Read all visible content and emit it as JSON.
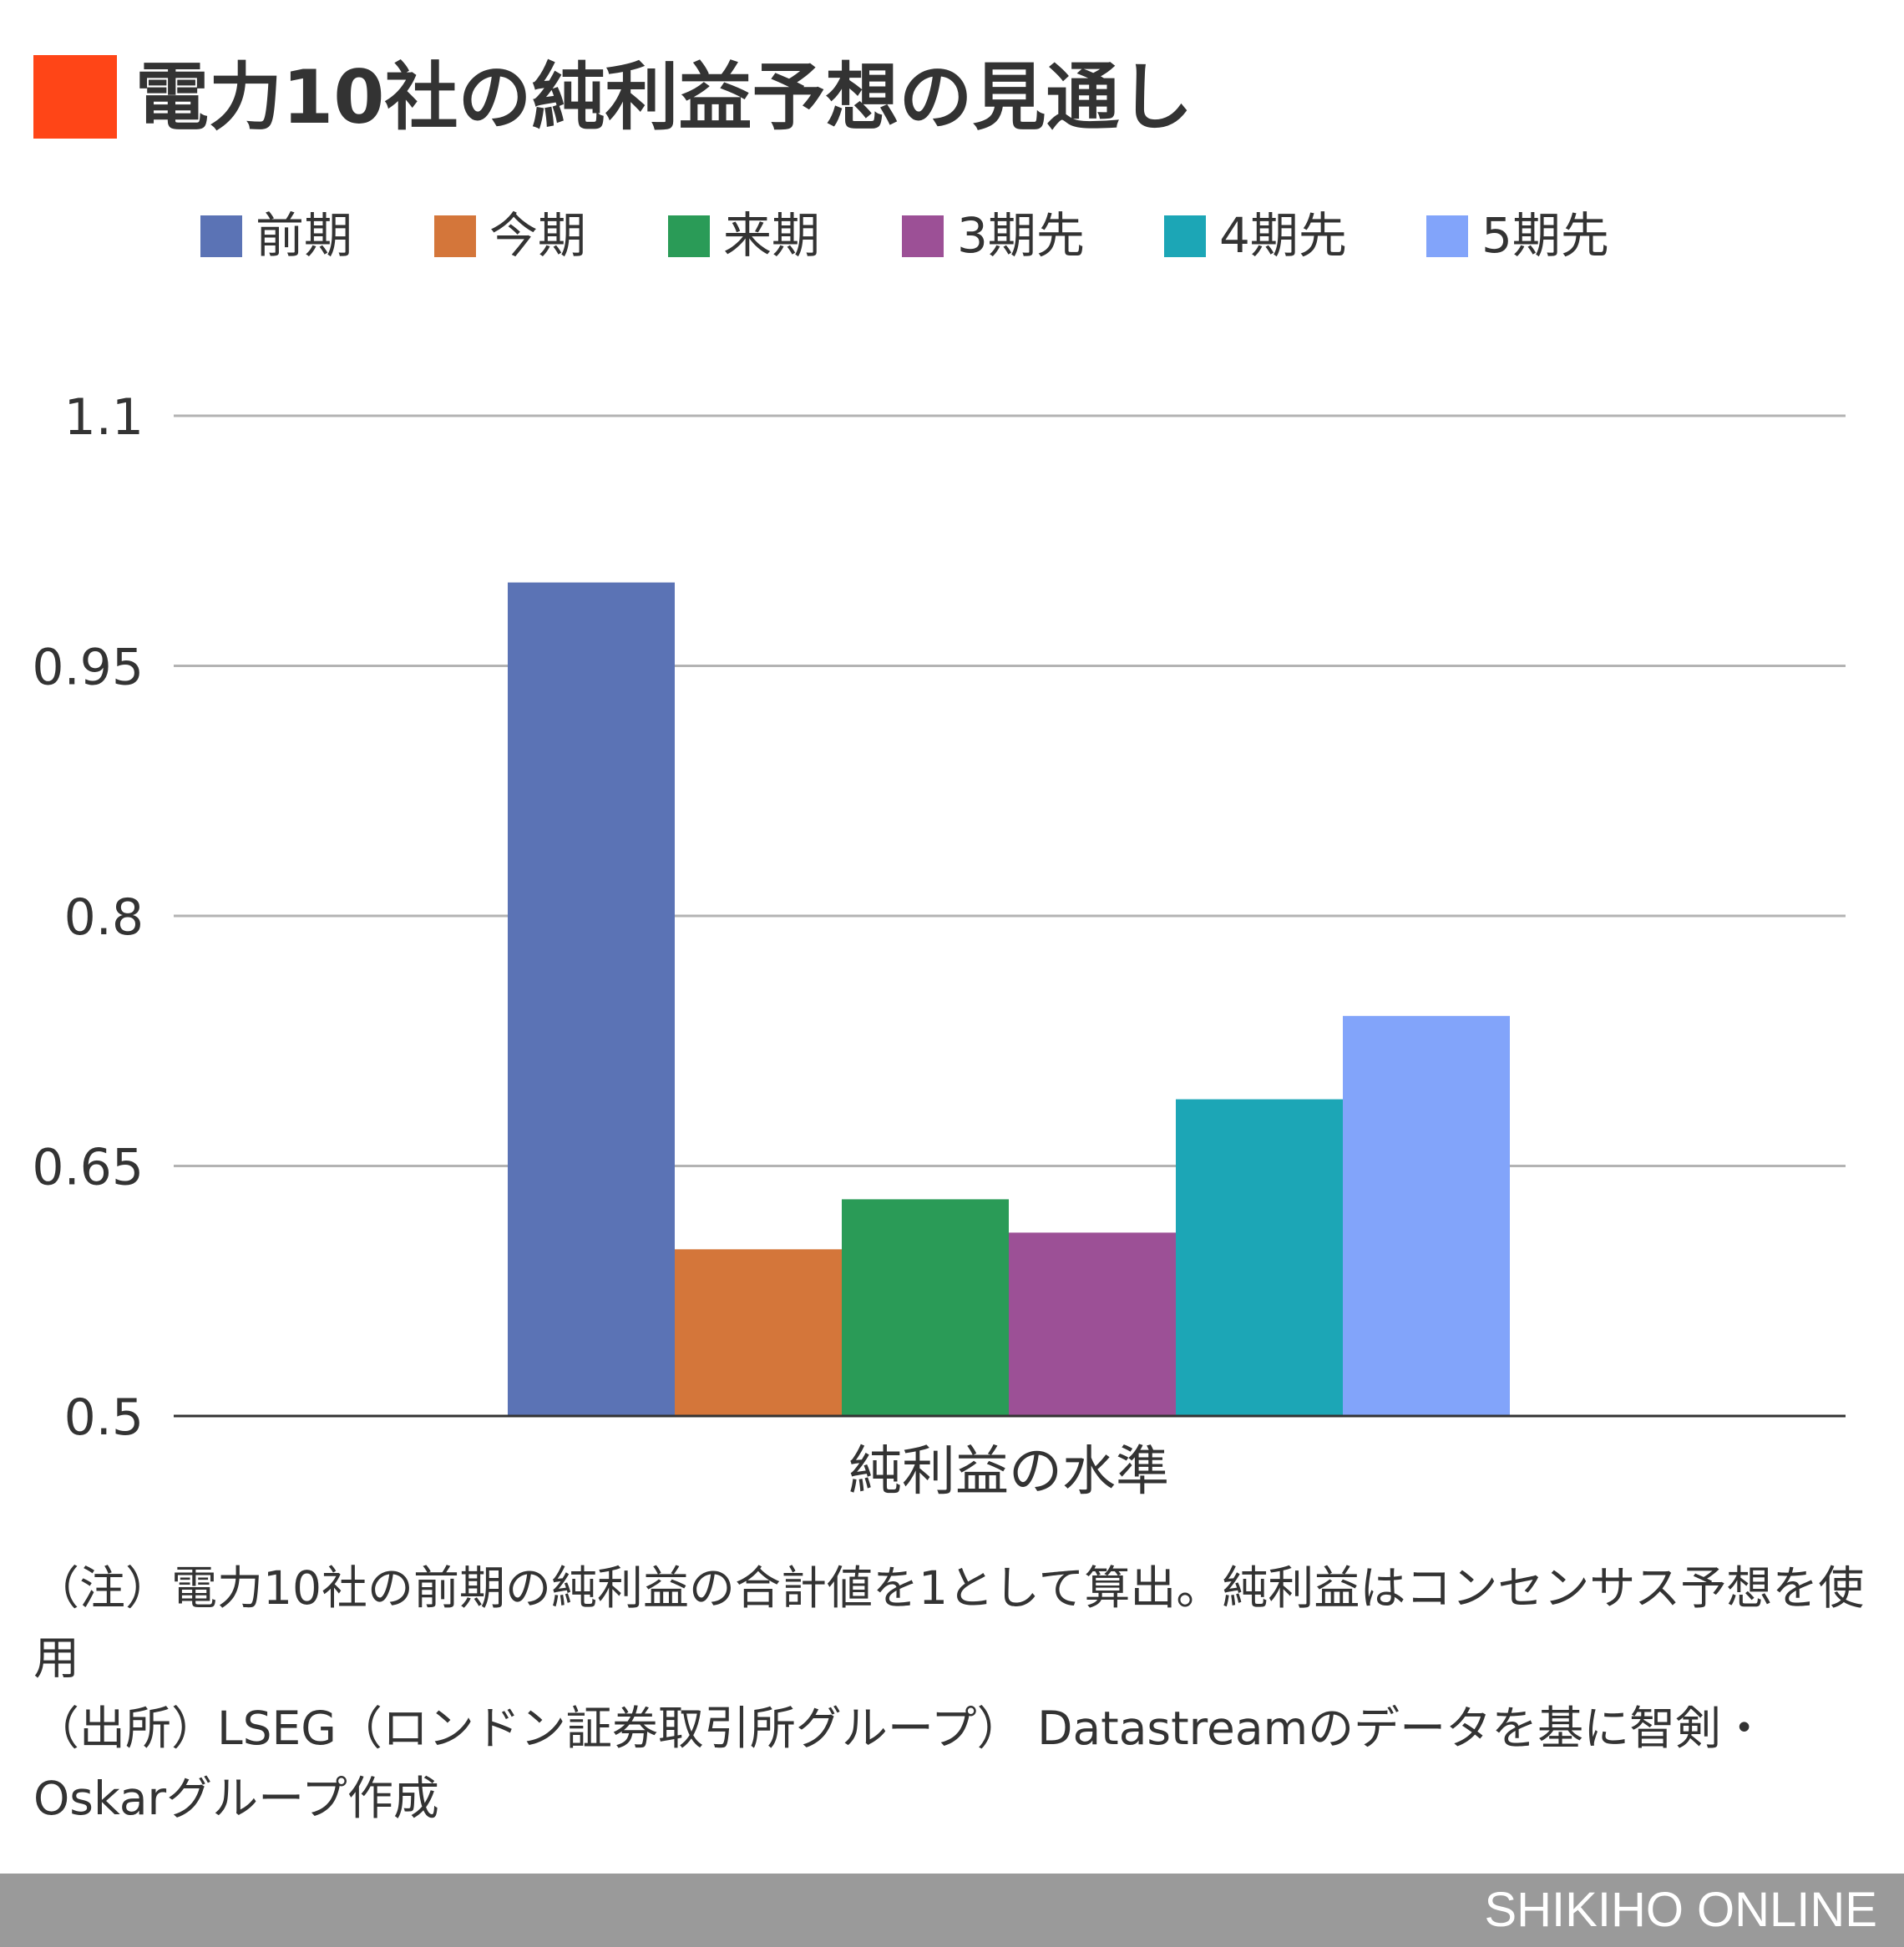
{
  "title": "電力10社の純利益予想の見通し",
  "colors": {
    "title_mark": "#FF4517"
  },
  "chart_data": {
    "type": "bar",
    "categories": [
      "純利益の水準"
    ],
    "series": [
      {
        "name": "前期",
        "values": [
          1.0
        ],
        "color": "#5B73B5"
      },
      {
        "name": "今期",
        "values": [
          0.6
        ],
        "color": "#D4763A"
      },
      {
        "name": "来期",
        "values": [
          0.63
        ],
        "color": "#2A9B57"
      },
      {
        "name": "3期先",
        "values": [
          0.61
        ],
        "color": "#9C5096"
      },
      {
        "name": "4期先",
        "values": [
          0.69
        ],
        "color": "#1CA6B6"
      },
      {
        "name": "5期先",
        "values": [
          0.74
        ],
        "color": "#82A4FA"
      }
    ],
    "yticks": [
      "0.5",
      "0.65",
      "0.8",
      "0.95",
      "1.1"
    ],
    "ylim": [
      0.5,
      1.1
    ],
    "grid": true,
    "legend": "top"
  },
  "notes": {
    "note": "（注）電力10社の前期の純利益の合計値を1として算出。純利益はコンセンサス予想を使用",
    "source": "（出所）LSEG（ロンドン証券取引所グループ） Datastreamのデータを基に智剣・Oskarグループ作成"
  },
  "footer": {
    "brand": "SHIKIHO ONLINE"
  }
}
